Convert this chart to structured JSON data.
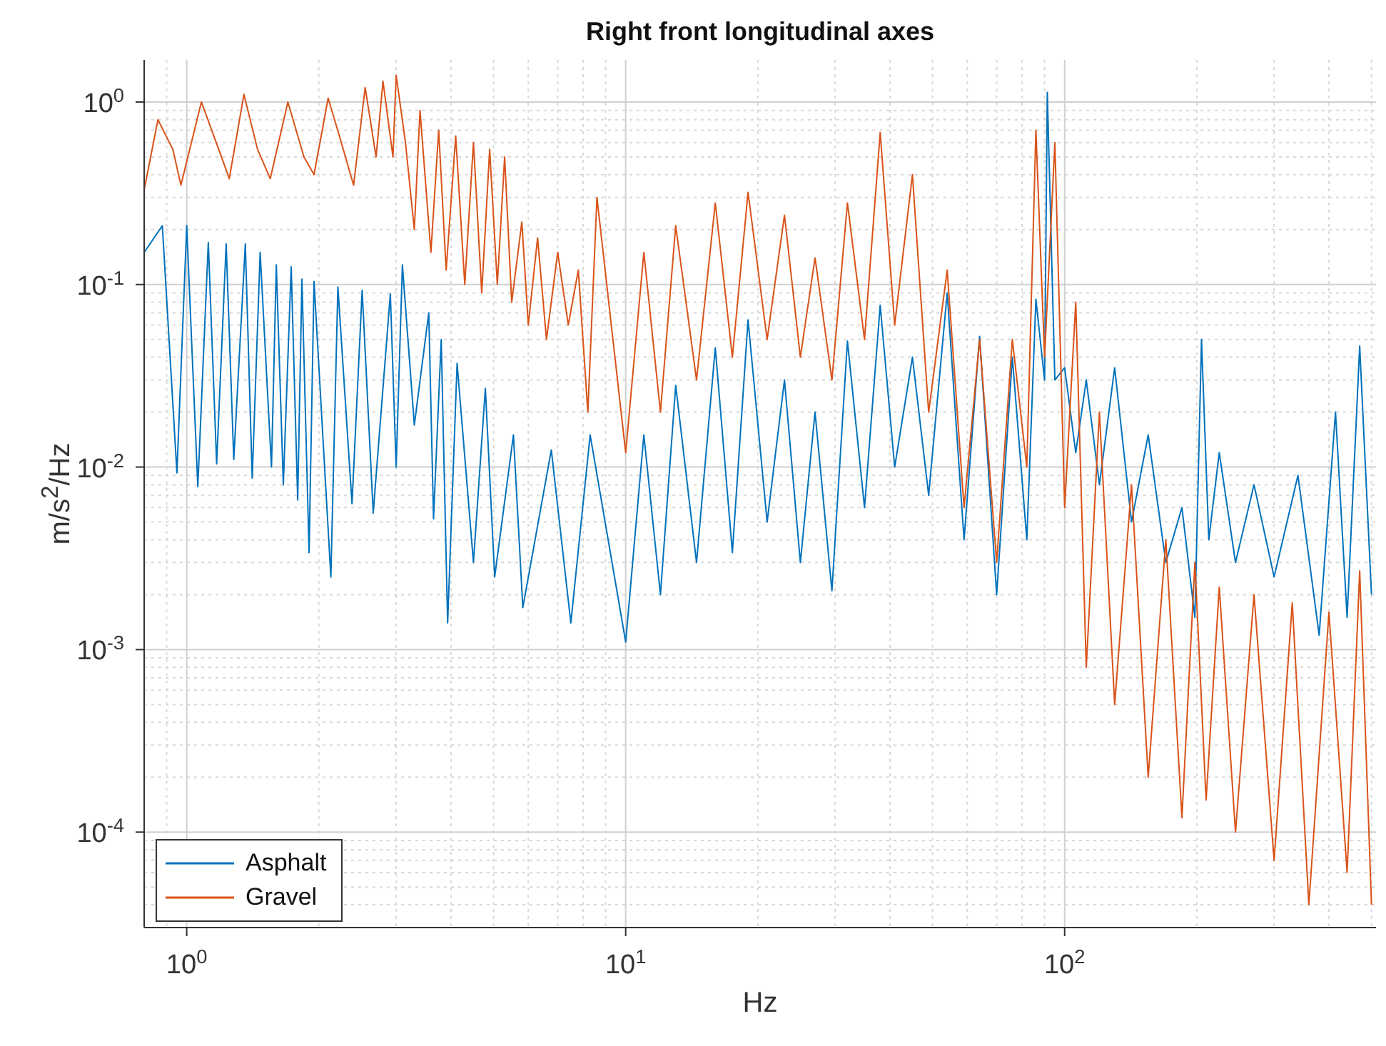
{
  "chart_data": {
    "type": "line",
    "title": "Right front longitudinal axes",
    "xlabel": "Hz",
    "ylabel": "m/s$^{2}$/Hz",
    "log": "xy",
    "grid": true,
    "legend": "bottom left",
    "xlim": [
      0.8,
      512
    ],
    "ylim": [
      3e-05,
      1.7
    ],
    "xticks": [
      {
        "value": 1,
        "label": "10$^{0}$"
      },
      {
        "value": 10,
        "label": "10$^{1}$"
      },
      {
        "value": 100,
        "label": "10$^{2}$"
      }
    ],
    "yticks": [
      {
        "value": 0.0001,
        "label": "10$^{-4}$"
      },
      {
        "value": 0.001,
        "label": "10$^{-3}$"
      },
      {
        "value": 0.01,
        "label": "10$^{-2}$"
      },
      {
        "value": 0.1,
        "label": "10$^{-1}$"
      },
      {
        "value": 1,
        "label": "10$^{0}$"
      }
    ],
    "series": [
      {
        "name": "Asphalt",
        "color": "#0072bd",
        "x": [
          0.8,
          0.88,
          0.95,
          1.0,
          1.06,
          1.12,
          1.17,
          1.23,
          1.28,
          1.36,
          1.41,
          1.47,
          1.56,
          1.6,
          1.66,
          1.73,
          1.79,
          1.83,
          1.9,
          1.95,
          2.13,
          2.21,
          2.38,
          2.51,
          2.66,
          2.91,
          3.0,
          3.1,
          3.3,
          3.56,
          3.65,
          3.8,
          3.93,
          4.13,
          4.5,
          4.79,
          5.03,
          5.55,
          5.83,
          6.77,
          7.5,
          8.3,
          10,
          11,
          12,
          13,
          14.5,
          16,
          17.5,
          19,
          21,
          23,
          25,
          27,
          29.5,
          32,
          35,
          38,
          41,
          45,
          49,
          54,
          59,
          64,
          70,
          76,
          82,
          86,
          90,
          91.3,
          95,
          100,
          106,
          112,
          120,
          130,
          142,
          155,
          170,
          185,
          198,
          205,
          213,
          225,
          245,
          270,
          300,
          340,
          380,
          414,
          440,
          470,
          500
        ],
        "values": [
          0.15,
          0.21,
          0.0093,
          0.21,
          0.0078,
          0.17,
          0.0104,
          0.167,
          0.011,
          0.167,
          0.0087,
          0.15,
          0.01,
          0.128,
          0.008,
          0.125,
          0.0066,
          0.107,
          0.0034,
          0.104,
          0.0025,
          0.097,
          0.0063,
          0.093,
          0.0056,
          0.089,
          0.01,
          0.128,
          0.017,
          0.07,
          0.0052,
          0.05,
          0.0014,
          0.037,
          0.003,
          0.027,
          0.0025,
          0.015,
          0.0017,
          0.0124,
          0.0014,
          0.015,
          0.0011,
          0.015,
          0.002,
          0.028,
          0.003,
          0.045,
          0.0034,
          0.064,
          0.005,
          0.03,
          0.003,
          0.02,
          0.0021,
          0.049,
          0.006,
          0.077,
          0.01,
          0.04,
          0.007,
          0.09,
          0.004,
          0.052,
          0.002,
          0.04,
          0.004,
          0.083,
          0.03,
          1.13,
          0.03,
          0.035,
          0.012,
          0.03,
          0.008,
          0.035,
          0.005,
          0.015,
          0.003,
          0.006,
          0.0015,
          0.05,
          0.004,
          0.012,
          0.003,
          0.008,
          0.0025,
          0.009,
          0.0012,
          0.02,
          0.0015,
          0.046,
          0.002
        ]
      },
      {
        "name": "Gravel",
        "color": "#d95319",
        "x": [
          0.8,
          0.86,
          0.93,
          0.97,
          1.08,
          1.2,
          1.25,
          1.35,
          1.45,
          1.55,
          1.7,
          1.85,
          1.95,
          2.1,
          2.25,
          2.4,
          2.55,
          2.7,
          2.8,
          2.95,
          3.0,
          3.15,
          3.3,
          3.4,
          3.6,
          3.75,
          3.9,
          4.1,
          4.3,
          4.5,
          4.7,
          4.9,
          5.1,
          5.3,
          5.5,
          5.8,
          6.0,
          6.3,
          6.6,
          7.0,
          7.4,
          7.8,
          8.2,
          8.6,
          10,
          11,
          12,
          13,
          14.5,
          16,
          17.5,
          19,
          21,
          23,
          25,
          27,
          29.5,
          32,
          35,
          38,
          41,
          45,
          49,
          54,
          59,
          64,
          70,
          76,
          82,
          86,
          90,
          95,
          100,
          106,
          112,
          120,
          130,
          142,
          155,
          170,
          185,
          198,
          210,
          225,
          245,
          270,
          300,
          330,
          360,
          400,
          440,
          470,
          500
        ],
        "values": [
          0.33,
          0.8,
          0.55,
          0.35,
          1.0,
          0.5,
          0.38,
          1.1,
          0.55,
          0.38,
          1.0,
          0.5,
          0.4,
          1.05,
          0.6,
          0.35,
          1.2,
          0.5,
          1.3,
          0.5,
          1.4,
          0.6,
          0.2,
          0.9,
          0.15,
          0.7,
          0.12,
          0.65,
          0.1,
          0.6,
          0.09,
          0.55,
          0.1,
          0.5,
          0.08,
          0.22,
          0.06,
          0.18,
          0.05,
          0.15,
          0.06,
          0.12,
          0.02,
          0.3,
          0.012,
          0.15,
          0.02,
          0.21,
          0.03,
          0.28,
          0.04,
          0.32,
          0.05,
          0.24,
          0.04,
          0.14,
          0.03,
          0.28,
          0.05,
          0.68,
          0.06,
          0.4,
          0.02,
          0.12,
          0.006,
          0.05,
          0.003,
          0.05,
          0.01,
          0.7,
          0.04,
          0.6,
          0.006,
          0.08,
          0.0008,
          0.02,
          0.0005,
          0.008,
          0.0002,
          0.004,
          0.00012,
          0.003,
          0.00015,
          0.0022,
          0.0001,
          0.002,
          7e-05,
          0.0018,
          4e-05,
          0.0016,
          6e-05,
          0.0027,
          4e-05
        ]
      }
    ]
  }
}
